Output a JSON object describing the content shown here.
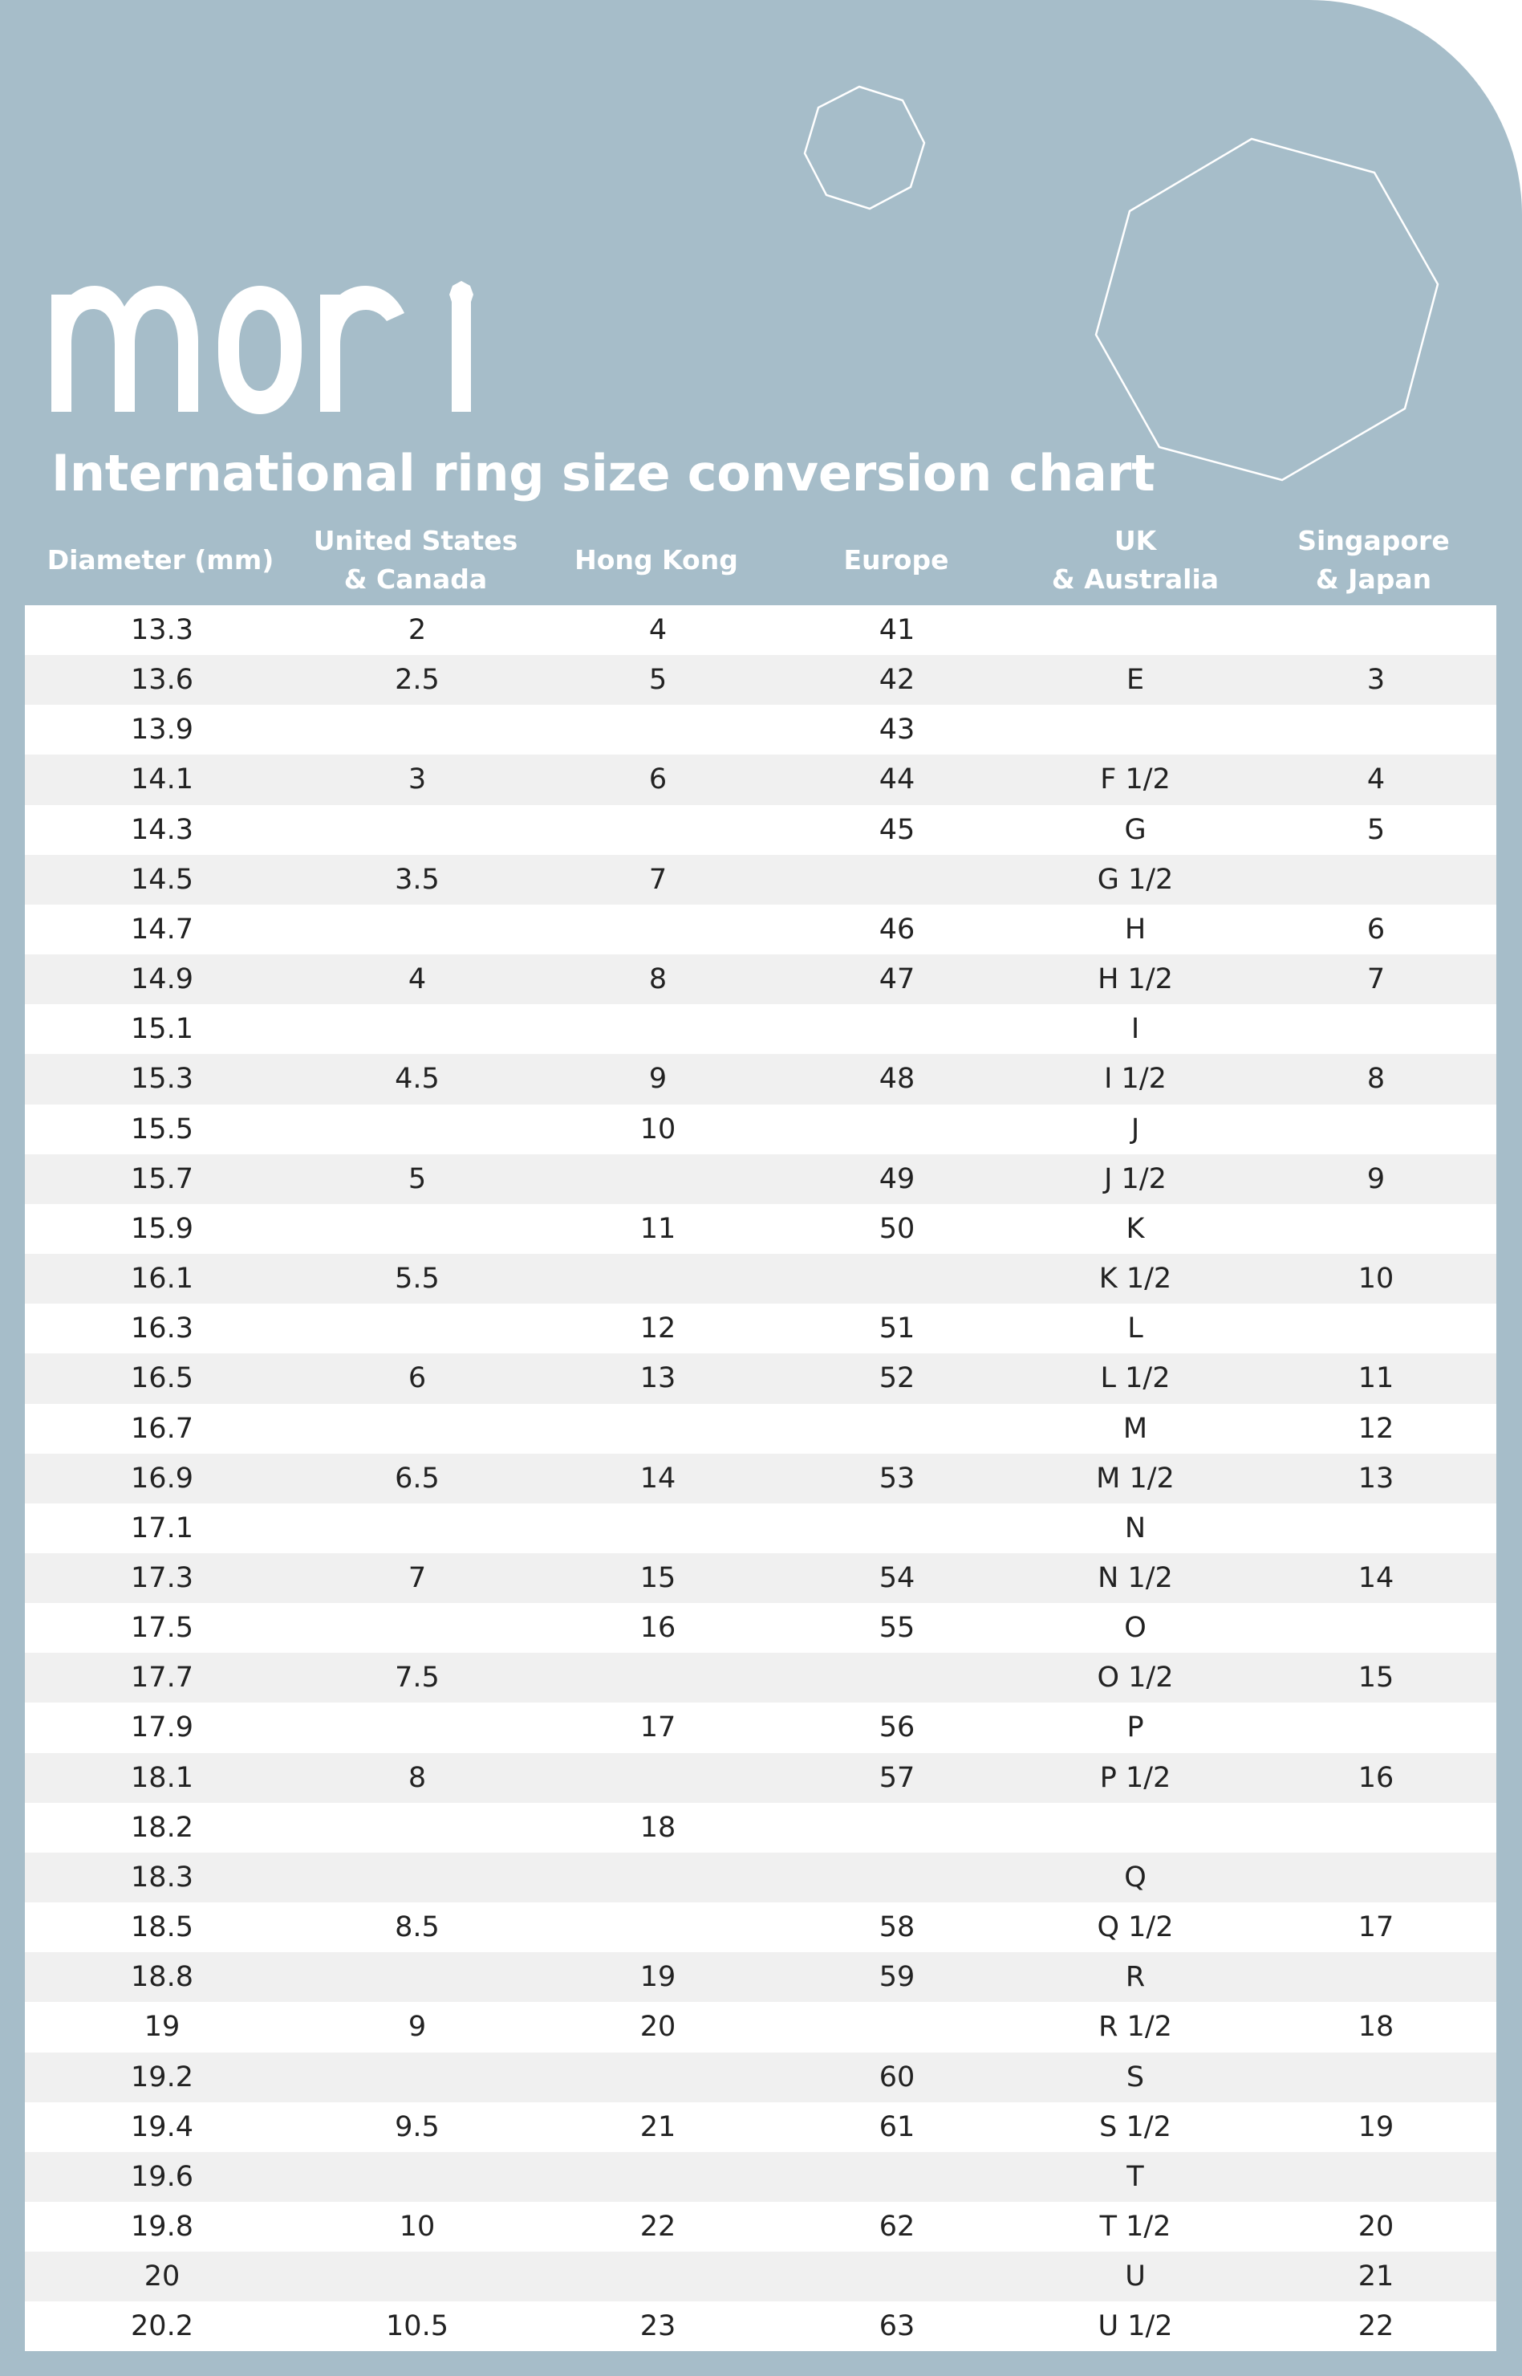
{
  "brand": {
    "logo_text": "mori",
    "background_color": "#a6bdc9",
    "stripe_color": "#f0f0f0",
    "text_color": "#222222"
  },
  "title": "International ring size conversion chart",
  "columns": [
    {
      "key": "diameter",
      "line1": "Diameter (mm)",
      "line2": ""
    },
    {
      "key": "us_canada",
      "line1": "United States",
      "line2": "& Canada"
    },
    {
      "key": "hong_kong",
      "line1": "Hong Kong",
      "line2": ""
    },
    {
      "key": "europe",
      "line1": "Europe",
      "line2": ""
    },
    {
      "key": "uk_australia",
      "line1": "UK",
      "line2": "& Australia"
    },
    {
      "key": "singapore_japan",
      "line1": "Singapore",
      "line2": "& Japan"
    }
  ],
  "rows": [
    [
      "13.3",
      "2",
      "4",
      "41",
      "",
      ""
    ],
    [
      "13.6",
      "2.5",
      "5",
      "42",
      "E",
      "3"
    ],
    [
      "13.9",
      "",
      "",
      "43",
      "",
      ""
    ],
    [
      "14.1",
      "3",
      "6",
      "44",
      "F 1/2",
      "4"
    ],
    [
      "14.3",
      "",
      "",
      "45",
      "G",
      "5"
    ],
    [
      "14.5",
      "3.5",
      "7",
      "",
      "G 1/2",
      ""
    ],
    [
      "14.7",
      "",
      "",
      "46",
      "H",
      "6"
    ],
    [
      "14.9",
      "4",
      "8",
      "47",
      "H 1/2",
      "7"
    ],
    [
      "15.1",
      "",
      "",
      "",
      "I",
      ""
    ],
    [
      "15.3",
      "4.5",
      "9",
      "48",
      "I 1/2",
      "8"
    ],
    [
      "15.5",
      "",
      "10",
      "",
      "J",
      ""
    ],
    [
      "15.7",
      "5",
      "",
      "49",
      "J 1/2",
      "9"
    ],
    [
      "15.9",
      "",
      "11",
      "50",
      "K",
      ""
    ],
    [
      "16.1",
      "5.5",
      "",
      "",
      "K 1/2",
      "10"
    ],
    [
      "16.3",
      "",
      "12",
      "51",
      "L",
      ""
    ],
    [
      "16.5",
      "6",
      "13",
      "52",
      "L 1/2",
      "11"
    ],
    [
      "16.7",
      "",
      "",
      "",
      "M",
      "12"
    ],
    [
      "16.9",
      "6.5",
      "14",
      "53",
      "M 1/2",
      "13"
    ],
    [
      "17.1",
      "",
      "",
      "",
      "N",
      ""
    ],
    [
      "17.3",
      "7",
      "15",
      "54",
      "N 1/2",
      "14"
    ],
    [
      "17.5",
      "",
      "16",
      "55",
      "O",
      ""
    ],
    [
      "17.7",
      "7.5",
      "",
      "",
      "O 1/2",
      "15"
    ],
    [
      "17.9",
      "",
      "17",
      "56",
      "P",
      ""
    ],
    [
      "18.1",
      "8",
      "",
      "57",
      "P 1/2",
      "16"
    ],
    [
      "18.2",
      "",
      "18",
      "",
      "",
      ""
    ],
    [
      "18.3",
      "",
      "",
      "",
      "Q",
      ""
    ],
    [
      "18.5",
      "8.5",
      "",
      "58",
      "Q 1/2",
      "17"
    ],
    [
      "18.8",
      "",
      "19",
      "59",
      "R",
      ""
    ],
    [
      "19",
      "9",
      "20",
      "",
      "R 1/2",
      "18"
    ],
    [
      "19.2",
      "",
      "",
      "60",
      "S",
      ""
    ],
    [
      "19.4",
      "9.5",
      "21",
      "61",
      "S 1/2",
      "19"
    ],
    [
      "19.6",
      "",
      "",
      "",
      "T",
      ""
    ],
    [
      "19.8",
      "10",
      "22",
      "62",
      "T 1/2",
      "20"
    ],
    [
      "20",
      "",
      "",
      "",
      "U",
      "21"
    ],
    [
      "20.2",
      "10.5",
      "23",
      "63",
      "U 1/2",
      "22"
    ]
  ],
  "decorations": {
    "small_polygon": "octagon-outline",
    "large_polygon": "nonagon-outline"
  },
  "chart_data": {
    "type": "table",
    "title": "International ring size conversion chart",
    "headers": [
      "Diameter (mm)",
      "United States & Canada",
      "Hong Kong",
      "Europe",
      "UK & Australia",
      "Singapore & Japan"
    ],
    "rows": [
      [
        "13.3",
        "2",
        "4",
        "41",
        "",
        ""
      ],
      [
        "13.6",
        "2.5",
        "5",
        "42",
        "E",
        "3"
      ],
      [
        "13.9",
        "",
        "",
        "43",
        "",
        ""
      ],
      [
        "14.1",
        "3",
        "6",
        "44",
        "F 1/2",
        "4"
      ],
      [
        "14.3",
        "",
        "",
        "45",
        "G",
        "5"
      ],
      [
        "14.5",
        "3.5",
        "7",
        "",
        "G 1/2",
        ""
      ],
      [
        "14.7",
        "",
        "",
        "46",
        "H",
        "6"
      ],
      [
        "14.9",
        "4",
        "8",
        "47",
        "H 1/2",
        "7"
      ],
      [
        "15.1",
        "",
        "",
        "",
        "I",
        ""
      ],
      [
        "15.3",
        "4.5",
        "9",
        "48",
        "I 1/2",
        "8"
      ],
      [
        "15.5",
        "",
        "10",
        "",
        "J",
        ""
      ],
      [
        "15.7",
        "5",
        "",
        "49",
        "J 1/2",
        "9"
      ],
      [
        "15.9",
        "",
        "11",
        "50",
        "K",
        ""
      ],
      [
        "16.1",
        "5.5",
        "",
        "",
        "K 1/2",
        "10"
      ],
      [
        "16.3",
        "",
        "12",
        "51",
        "L",
        ""
      ],
      [
        "16.5",
        "6",
        "13",
        "52",
        "L 1/2",
        "11"
      ],
      [
        "16.7",
        "",
        "",
        "",
        "M",
        "12"
      ],
      [
        "16.9",
        "6.5",
        "14",
        "53",
        "M 1/2",
        "13"
      ],
      [
        "17.1",
        "",
        "",
        "",
        "N",
        ""
      ],
      [
        "17.3",
        "7",
        "15",
        "54",
        "N 1/2",
        "14"
      ],
      [
        "17.5",
        "",
        "16",
        "55",
        "O",
        ""
      ],
      [
        "17.7",
        "7.5",
        "",
        "",
        "O 1/2",
        "15"
      ],
      [
        "17.9",
        "",
        "17",
        "56",
        "P",
        ""
      ],
      [
        "18.1",
        "8",
        "",
        "57",
        "P 1/2",
        "16"
      ],
      [
        "18.2",
        "",
        "18",
        "",
        "",
        ""
      ],
      [
        "18.3",
        "",
        "",
        "",
        "Q",
        ""
      ],
      [
        "18.5",
        "8.5",
        "",
        "58",
        "Q 1/2",
        "17"
      ],
      [
        "18.8",
        "",
        "19",
        "59",
        "R",
        ""
      ],
      [
        "19",
        "9",
        "20",
        "",
        "R 1/2",
        "18"
      ],
      [
        "19.2",
        "",
        "",
        "60",
        "S",
        ""
      ],
      [
        "19.4",
        "9.5",
        "21",
        "61",
        "S 1/2",
        "19"
      ],
      [
        "19.6",
        "",
        "",
        "",
        "T",
        ""
      ],
      [
        "19.8",
        "10",
        "22",
        "62",
        "T 1/2",
        "20"
      ],
      [
        "20",
        "",
        "",
        "",
        "U",
        "21"
      ],
      [
        "20.2",
        "10.5",
        "23",
        "63",
        "U 1/2",
        "22"
      ]
    ]
  }
}
